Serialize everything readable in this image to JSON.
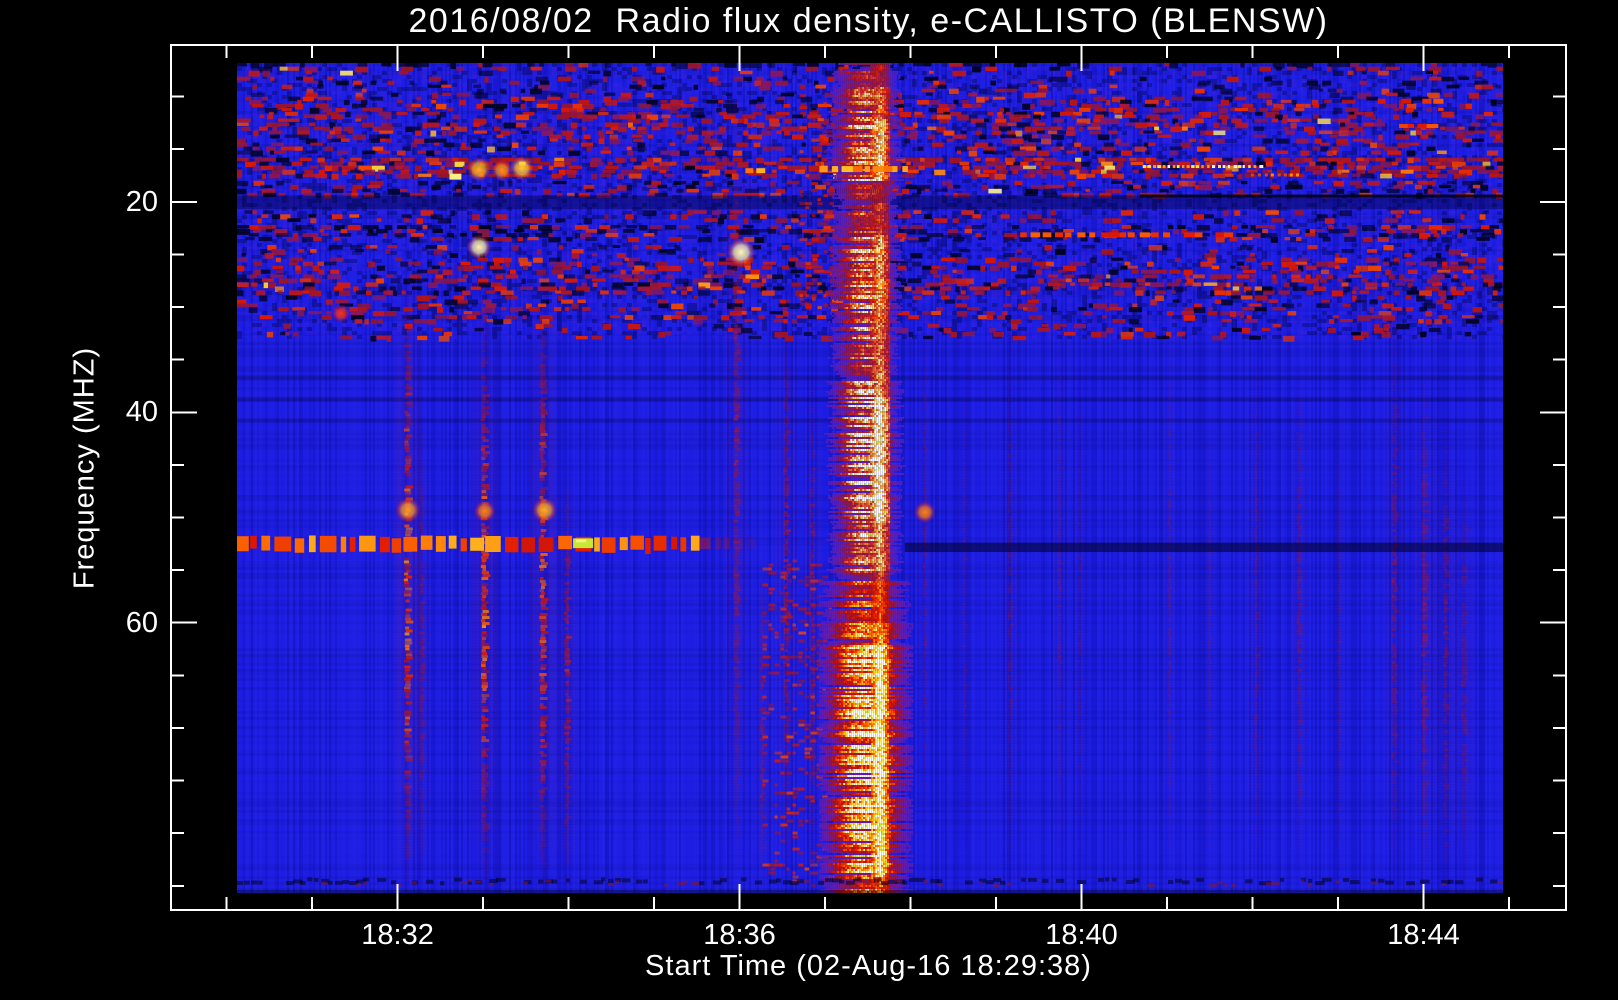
{
  "chart_data": {
    "type": "heatmap",
    "title": "2016/08/02  Radio flux density, e-CALLISTO (BLENSW)",
    "xlabel": "Start Time (02-Aug-16 18:29:38)",
    "ylabel": "Frequency (MHZ)",
    "x_axis": {
      "start": "18:29:21",
      "end": "18:45:40",
      "major_tick_labels": [
        "18:32",
        "18:36",
        "18:40",
        "18:44"
      ],
      "minor_tick_every_s": 60
    },
    "y_axis": {
      "min": 5.1,
      "max": 87.3,
      "major_ticks": [
        20,
        40,
        60
      ],
      "minor_step": 5
    },
    "image": {
      "time_start": "18:30:07",
      "time_end": "18:44:56",
      "freq_top": 6.8,
      "freq_bottom": 85.7
    },
    "palette": {
      "base_blue": "#1c1ce2",
      "light_blue": "#4040ff",
      "dark_navy": "#000050",
      "near_black": "#000008",
      "green_yellow": "#c8e838",
      "frame": "#ffffff",
      "ramp": [
        [
          0,
          "#2a20d8"
        ],
        [
          0.22,
          "#6a1caa"
        ],
        [
          0.4,
          "#a01420"
        ],
        [
          0.55,
          "#e01800"
        ],
        [
          0.7,
          "#ff6a00"
        ],
        [
          0.83,
          "#ffd22a"
        ],
        [
          0.93,
          "#fff9a0"
        ],
        [
          1,
          "#ffffff"
        ]
      ]
    },
    "features": {
      "time_unit": "seconds after x_axis.start",
      "noise_top_mhz": 33.0,
      "noise_bands": [
        {
          "f0": 6.8,
          "f1": 7.15,
          "density": 0.5,
          "bright": 0,
          "dark": 0.85
        },
        {
          "f0": 7.15,
          "f1": 7.9,
          "density": 0.3,
          "bright": 0.05,
          "dark": 0.3
        },
        {
          "f0": 8.1,
          "f1": 10.1,
          "density": 0.28,
          "bright": 0.01,
          "dark": 0.45
        },
        {
          "f0": 10.3,
          "f1": 11.5,
          "density": 0.42,
          "bright": 0.02,
          "dark": 0.2
        },
        {
          "f0": 11.7,
          "f1": 13.3,
          "density": 0.5,
          "bright": 0.05,
          "dark": 0.15
        },
        {
          "f0": 13.6,
          "f1": 15.2,
          "density": 0.38,
          "bright": 0.01,
          "dark": 0.3
        },
        {
          "f0": 15.8,
          "f1": 17.7,
          "density": 0.66,
          "bright": 0.07,
          "dark": 0.08
        },
        {
          "f0": 18.0,
          "f1": 19.3,
          "density": 0.45,
          "bright": 0.01,
          "dark": 0.35
        },
        {
          "f0": 20.8,
          "f1": 21.9,
          "density": 0.32,
          "bright": 0.01,
          "dark": 0.3
        },
        {
          "f0": 22.2,
          "f1": 23.7,
          "density": 0.55,
          "bright": 0.02,
          "dark": 0.5
        },
        {
          "f0": 24.1,
          "f1": 24.9,
          "density": 0.22,
          "bright": 0,
          "dark": 0.3
        },
        {
          "f0": 25.3,
          "f1": 26.5,
          "density": 0.45,
          "bright": 0.02,
          "dark": 0.2
        },
        {
          "f0": 26.9,
          "f1": 28.5,
          "density": 0.6,
          "bright": 0.03,
          "dark": 0.25
        },
        {
          "f0": 28.9,
          "f1": 29.7,
          "density": 0.28,
          "bright": 0.01,
          "dark": 0.3
        },
        {
          "f0": 30.0,
          "f1": 31.2,
          "density": 0.33,
          "bright": 0.01,
          "dark": 0.2
        },
        {
          "f0": 31.6,
          "f1": 32.8,
          "density": 0.2,
          "bright": 0,
          "dark": 0.2
        }
      ],
      "suppressed_band": {
        "f0": 19.4,
        "f1": 20.7,
        "alpha": 0.4
      },
      "dark_rows": [
        36.5,
        38.6,
        40.6
      ],
      "dark_line_19": {
        "t0": 680,
        "t1": 935,
        "f": 19.3
      },
      "band50": {
        "f0": 51.8,
        "f1": 53.2,
        "t0": 46,
        "t_strong_end": 371,
        "t_fade_end": 410,
        "green": {
          "t0": 282,
          "t1": 296
        },
        "dark": {
          "t0": 515,
          "t1": 935,
          "f0": 52.4,
          "f1": 53.1
        }
      },
      "streaks": [
        {
          "t": 166,
          "w": 6,
          "f0": 27,
          "f1": 85.5,
          "s": 0.9
        },
        {
          "t": 176,
          "w": 4,
          "f0": 40,
          "f1": 85,
          "s": 0.4
        },
        {
          "t": 220,
          "w": 6,
          "f0": 30,
          "f1": 85.5,
          "s": 0.85
        },
        {
          "t": 261,
          "w": 6,
          "f0": 28,
          "f1": 85.5,
          "s": 0.8
        },
        {
          "t": 278,
          "w": 5,
          "f0": 45,
          "f1": 85,
          "s": 0.55
        },
        {
          "t": 397,
          "w": 5,
          "f0": 8,
          "f1": 85,
          "s": 0.5
        },
        {
          "t": 415,
          "w": 4,
          "f0": 55,
          "f1": 85,
          "s": 0.45
        },
        {
          "t": 432,
          "w": 5,
          "f0": 30,
          "f1": 85,
          "s": 0.5
        },
        {
          "t": 450,
          "w": 4,
          "f0": 35,
          "f1": 85,
          "s": 0.45
        },
        {
          "t": 529,
          "w": 3,
          "f0": 30,
          "f1": 80,
          "s": 0.3
        },
        {
          "t": 557,
          "w": 3,
          "f0": 35,
          "f1": 82,
          "s": 0.25
        },
        {
          "t": 589,
          "w": 4,
          "f0": 33,
          "f1": 85,
          "s": 0.3
        },
        {
          "t": 624,
          "w": 3,
          "f0": 30,
          "f1": 85,
          "s": 0.28
        },
        {
          "t": 638,
          "w": 3,
          "f0": 35,
          "f1": 85,
          "s": 0.25
        },
        {
          "t": 701,
          "w": 3,
          "f0": 30,
          "f1": 85,
          "s": 0.3
        },
        {
          "t": 729,
          "w": 3,
          "f0": 40,
          "f1": 85,
          "s": 0.25
        },
        {
          "t": 762,
          "w": 4,
          "f0": 33,
          "f1": 85,
          "s": 0.3
        },
        {
          "t": 792,
          "w": 4,
          "f0": 35,
          "f1": 85,
          "s": 0.35
        },
        {
          "t": 820,
          "w": 3,
          "f0": 40,
          "f1": 85,
          "s": 0.25
        },
        {
          "t": 859,
          "w": 5,
          "f0": 30,
          "f1": 85,
          "s": 0.4
        },
        {
          "t": 880,
          "w": 6,
          "f0": 35,
          "f1": 85.5,
          "s": 0.45
        },
        {
          "t": 895,
          "w": 5,
          "f0": 40,
          "f1": 85.5,
          "s": 0.4
        },
        {
          "t": 908,
          "w": 5,
          "f0": 45,
          "f1": 85.5,
          "s": 0.35
        }
      ],
      "dash_columns": [
        {
          "t0": 415,
          "t1": 462,
          "f0": 54,
          "f1": 84.5,
          "density": 0.28
        },
        {
          "t0": 441,
          "t1": 463,
          "f0": 9,
          "f1": 30,
          "density": 0.22
        }
      ],
      "burst": {
        "t0": 464,
        "t1": 509,
        "core_t0": 492,
        "core_t1": 502,
        "peak_t": 497,
        "wide_below_mhz": 56,
        "profile": [
          [
            6.8,
            9,
            0.5
          ],
          [
            9,
            12,
            0.7
          ],
          [
            12,
            18,
            0.88
          ],
          [
            18,
            20,
            0.45
          ],
          [
            20,
            23,
            0.6
          ],
          [
            23,
            30,
            0.8
          ],
          [
            30,
            36,
            0.72
          ],
          [
            36,
            38.5,
            0.78
          ],
          [
            38.5,
            50.5,
            1.0
          ],
          [
            50.5,
            55,
            0.8
          ],
          [
            55,
            60,
            0.62
          ],
          [
            60,
            62,
            0.8
          ],
          [
            62,
            84,
            1.0
          ],
          [
            84,
            85.7,
            0.7
          ]
        ]
      },
      "hot_segments": [
        {
          "t0": 682,
          "t1": 766,
          "f": 16.5,
          "h": 3,
          "style": "yellow_dashed"
        },
        {
          "t0": 758,
          "t1": 792,
          "f": 17.3,
          "h": 3,
          "style": "orange_dashed"
        },
        {
          "t0": 596,
          "t1": 743,
          "f": 22.9,
          "h": 5,
          "style": "red"
        },
        {
          "t0": 847,
          "t1": 894,
          "f": 10.2,
          "h": 5,
          "style": "red"
        },
        {
          "t0": 862,
          "t1": 890,
          "f": 12.6,
          "h": 4,
          "style": "red"
        },
        {
          "t0": 455,
          "t1": 515,
          "f": 16.6,
          "h": 6,
          "style": "orange"
        },
        {
          "t0": 403,
          "t1": 418,
          "f": 16.8,
          "h": 5,
          "style": "orange"
        }
      ],
      "blobs": [
        {
          "t": 216,
          "f": 16.9,
          "r": 7,
          "c": "#ffb020"
        },
        {
          "t": 232,
          "f": 17.0,
          "r": 6,
          "c": "#ff9010"
        },
        {
          "t": 246,
          "f": 16.8,
          "r": 7,
          "c": "#ffc830"
        },
        {
          "t": 216,
          "f": 24.3,
          "r": 7,
          "c": "#fff2a0"
        },
        {
          "t": 400,
          "f": 24.8,
          "r": 8,
          "c": "#fff6b0"
        },
        {
          "t": 119,
          "f": 30.6,
          "r": 5,
          "c": "#ff3010"
        },
        {
          "t": 166,
          "f": 49.3,
          "r": 7,
          "c": "#ff9820"
        },
        {
          "t": 220,
          "f": 49.4,
          "r": 6,
          "c": "#ff8010"
        },
        {
          "t": 262,
          "f": 49.3,
          "r": 7,
          "c": "#ffab20"
        },
        {
          "t": 529,
          "f": 49.5,
          "r": 6,
          "c": "#ff8010"
        }
      ],
      "bottom_band": {
        "f0": 84.2,
        "f1": 85.7
      }
    }
  }
}
